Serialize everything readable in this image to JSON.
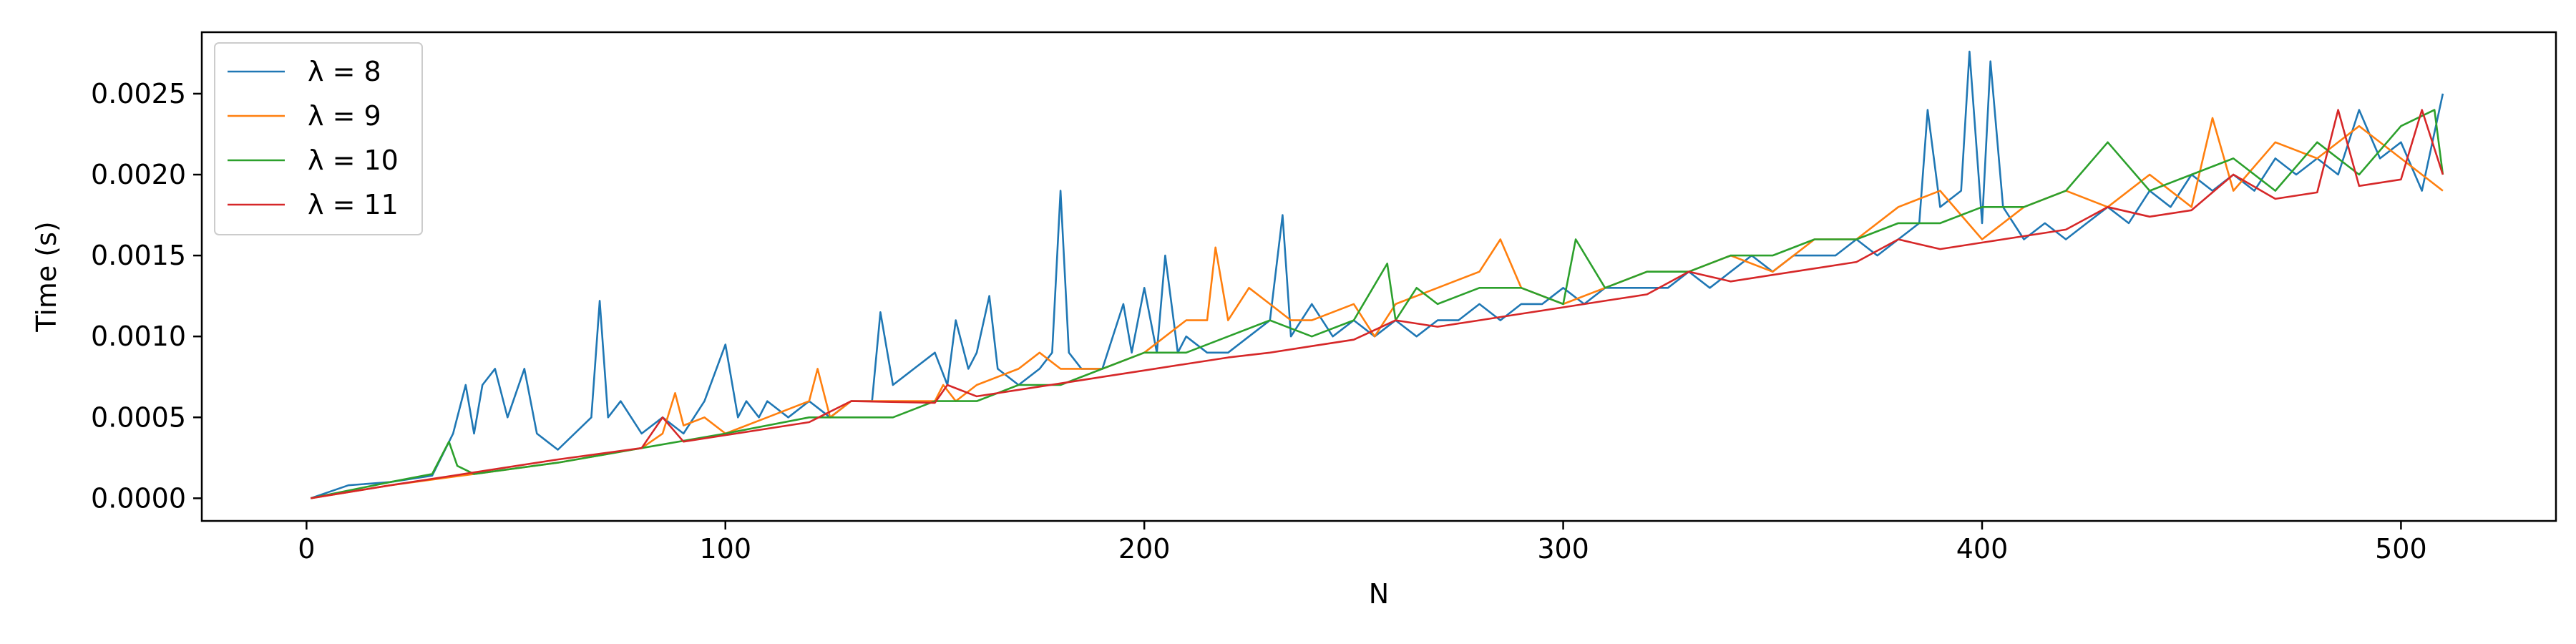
{
  "chart_data": {
    "type": "line",
    "xlabel": "N",
    "ylabel": "Time (s)",
    "xlim": [
      -25,
      537
    ],
    "ylim": [
      -0.00014,
      0.00288
    ],
    "xticks": [
      0,
      100,
      200,
      300,
      400,
      500
    ],
    "xtick_labels": [
      "0",
      "100",
      "200",
      "300",
      "400",
      "500"
    ],
    "yticks": [
      0.0,
      0.0005,
      0.001,
      0.0015,
      0.002,
      0.0025
    ],
    "ytick_labels": [
      "0.0000",
      "0.0005",
      "0.0010",
      "0.0015",
      "0.0020",
      "0.0025"
    ],
    "grid": false,
    "legend": "top-left",
    "series": [
      {
        "name": "λ = 8",
        "color": "#1f77b4",
        "x": [
          1,
          10,
          20,
          30,
          35,
          38,
          40,
          42,
          45,
          48,
          52,
          55,
          60,
          68,
          70,
          72,
          75,
          80,
          85,
          90,
          95,
          100,
          103,
          105,
          108,
          110,
          115,
          120,
          125,
          130,
          135,
          137,
          140,
          145,
          150,
          153,
          155,
          158,
          160,
          163,
          165,
          170,
          175,
          178,
          180,
          182,
          185,
          190,
          195,
          197,
          200,
          203,
          205,
          208,
          210,
          215,
          220,
          225,
          230,
          233,
          235,
          240,
          245,
          250,
          255,
          260,
          265,
          270,
          275,
          280,
          285,
          290,
          295,
          300,
          305,
          310,
          315,
          320,
          325,
          330,
          335,
          340,
          345,
          350,
          355,
          360,
          365,
          370,
          375,
          380,
          385,
          387,
          390,
          395,
          397,
          400,
          402,
          405,
          410,
          415,
          420,
          425,
          430,
          435,
          440,
          445,
          450,
          455,
          460,
          465,
          470,
          475,
          480,
          485,
          490,
          495,
          500,
          505,
          510
        ],
        "y": [
          0.0,
          8e-05,
          0.0001,
          0.00014,
          0.0004,
          0.0007,
          0.0004,
          0.0007,
          0.0008,
          0.0005,
          0.0008,
          0.0004,
          0.0003,
          0.0005,
          0.00122,
          0.0005,
          0.0006,
          0.0004,
          0.0005,
          0.0004,
          0.0006,
          0.00095,
          0.0005,
          0.0006,
          0.0005,
          0.0006,
          0.0005,
          0.0006,
          0.0005,
          0.0006,
          0.0006,
          0.00115,
          0.0007,
          0.0008,
          0.0009,
          0.0007,
          0.0011,
          0.0008,
          0.0009,
          0.00125,
          0.0008,
          0.0007,
          0.0008,
          0.0009,
          0.0019,
          0.0009,
          0.0008,
          0.0008,
          0.0012,
          0.0009,
          0.0013,
          0.0009,
          0.0015,
          0.0009,
          0.001,
          0.0009,
          0.0009,
          0.001,
          0.0011,
          0.00175,
          0.001,
          0.0012,
          0.001,
          0.0011,
          0.001,
          0.0011,
          0.001,
          0.0011,
          0.0011,
          0.0012,
          0.0011,
          0.0012,
          0.0012,
          0.0013,
          0.0012,
          0.0013,
          0.0013,
          0.0013,
          0.0013,
          0.0014,
          0.0013,
          0.0014,
          0.0015,
          0.0014,
          0.0015,
          0.0015,
          0.0015,
          0.0016,
          0.0015,
          0.0016,
          0.0017,
          0.0024,
          0.0018,
          0.0019,
          0.00276,
          0.0017,
          0.0027,
          0.0018,
          0.0016,
          0.0017,
          0.0016,
          0.0017,
          0.0018,
          0.0017,
          0.0019,
          0.0018,
          0.002,
          0.0019,
          0.002,
          0.0019,
          0.0021,
          0.002,
          0.0021,
          0.002,
          0.0024,
          0.0021,
          0.0022,
          0.0019,
          0.0025
        ]
      },
      {
        "name": "λ = 9",
        "color": "#ff7f0e",
        "x": [
          1,
          20,
          40,
          60,
          80,
          85,
          88,
          90,
          95,
          100,
          110,
          120,
          122,
          125,
          130,
          140,
          150,
          152,
          155,
          160,
          170,
          175,
          180,
          190,
          200,
          210,
          215,
          217,
          220,
          225,
          230,
          235,
          240,
          250,
          255,
          260,
          270,
          280,
          285,
          290,
          300,
          310,
          320,
          330,
          340,
          350,
          360,
          370,
          380,
          390,
          400,
          410,
          420,
          430,
          440,
          450,
          455,
          460,
          470,
          480,
          490,
          500,
          505,
          510
        ],
        "y": [
          0.0,
          8e-05,
          0.00015,
          0.00022,
          0.00031,
          0.0004,
          0.00065,
          0.00045,
          0.0005,
          0.0004,
          0.0005,
          0.0006,
          0.0008,
          0.0005,
          0.0006,
          0.0006,
          0.0006,
          0.0007,
          0.0006,
          0.0007,
          0.0008,
          0.0009,
          0.0008,
          0.0008,
          0.0009,
          0.0011,
          0.0011,
          0.00155,
          0.0011,
          0.0013,
          0.0012,
          0.0011,
          0.0011,
          0.0012,
          0.001,
          0.0012,
          0.0013,
          0.0014,
          0.0016,
          0.0013,
          0.0012,
          0.0013,
          0.0014,
          0.0014,
          0.0015,
          0.0014,
          0.0016,
          0.0016,
          0.0018,
          0.0019,
          0.0016,
          0.0018,
          0.0019,
          0.0018,
          0.002,
          0.0018,
          0.00235,
          0.0019,
          0.0022,
          0.0021,
          0.0023,
          0.0021,
          0.002,
          0.0019
        ]
      },
      {
        "name": "λ = 10",
        "color": "#2ca02c",
        "x": [
          1,
          20,
          30,
          34,
          36,
          40,
          60,
          80,
          100,
          120,
          140,
          150,
          160,
          170,
          180,
          190,
          200,
          210,
          220,
          230,
          240,
          250,
          258,
          260,
          265,
          270,
          280,
          290,
          300,
          303,
          310,
          320,
          330,
          340,
          350,
          360,
          370,
          380,
          390,
          400,
          410,
          420,
          430,
          440,
          450,
          460,
          470,
          480,
          490,
          500,
          508,
          510
        ],
        "y": [
          0.0,
          0.0001,
          0.00015,
          0.00035,
          0.0002,
          0.00015,
          0.00022,
          0.00031,
          0.0004,
          0.0005,
          0.0005,
          0.0006,
          0.0006,
          0.0007,
          0.0007,
          0.0008,
          0.0009,
          0.0009,
          0.001,
          0.0011,
          0.001,
          0.0011,
          0.00145,
          0.0011,
          0.0013,
          0.0012,
          0.0013,
          0.0013,
          0.0012,
          0.0016,
          0.0013,
          0.0014,
          0.0014,
          0.0015,
          0.0015,
          0.0016,
          0.0016,
          0.0017,
          0.0017,
          0.0018,
          0.0018,
          0.0019,
          0.0022,
          0.0019,
          0.002,
          0.0021,
          0.0019,
          0.0022,
          0.002,
          0.0023,
          0.0024,
          0.002
        ]
      },
      {
        "name": "λ = 11",
        "color": "#d62728",
        "x": [
          1,
          20,
          40,
          60,
          80,
          85,
          90,
          100,
          120,
          130,
          150,
          153,
          160,
          170,
          180,
          190,
          200,
          210,
          220,
          230,
          240,
          250,
          260,
          270,
          280,
          290,
          300,
          310,
          320,
          330,
          340,
          350,
          360,
          370,
          380,
          390,
          400,
          410,
          420,
          430,
          440,
          450,
          460,
          470,
          480,
          485,
          490,
          500,
          505,
          510
        ],
        "y": [
          0.0,
          8e-05,
          0.00016,
          0.00024,
          0.00031,
          0.0005,
          0.00035,
          0.00039,
          0.00047,
          0.0006,
          0.00059,
          0.0007,
          0.00063,
          0.00067,
          0.00071,
          0.00075,
          0.00079,
          0.00083,
          0.00087,
          0.0009,
          0.00094,
          0.00098,
          0.0011,
          0.00106,
          0.0011,
          0.00114,
          0.00118,
          0.00122,
          0.00126,
          0.0014,
          0.00134,
          0.00138,
          0.00142,
          0.00146,
          0.0016,
          0.00154,
          0.00158,
          0.00162,
          0.00166,
          0.0018,
          0.00174,
          0.00178,
          0.002,
          0.00185,
          0.00189,
          0.0024,
          0.00193,
          0.00197,
          0.0024,
          0.002
        ]
      }
    ]
  }
}
